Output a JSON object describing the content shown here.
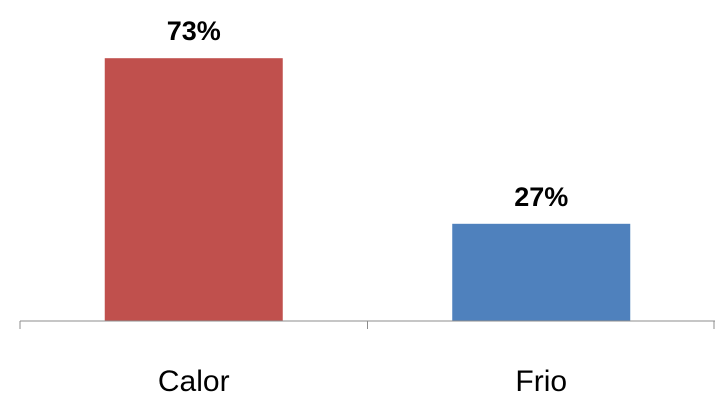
{
  "chart_data": {
    "type": "bar",
    "categories": [
      "Calor",
      "Frio"
    ],
    "values": [
      73,
      27
    ],
    "data_labels": [
      "73%",
      "27%"
    ],
    "colors": [
      "#C0504D",
      "#4F81BD"
    ],
    "ylim": [
      0,
      100
    ],
    "grid": false,
    "legend": "none"
  }
}
